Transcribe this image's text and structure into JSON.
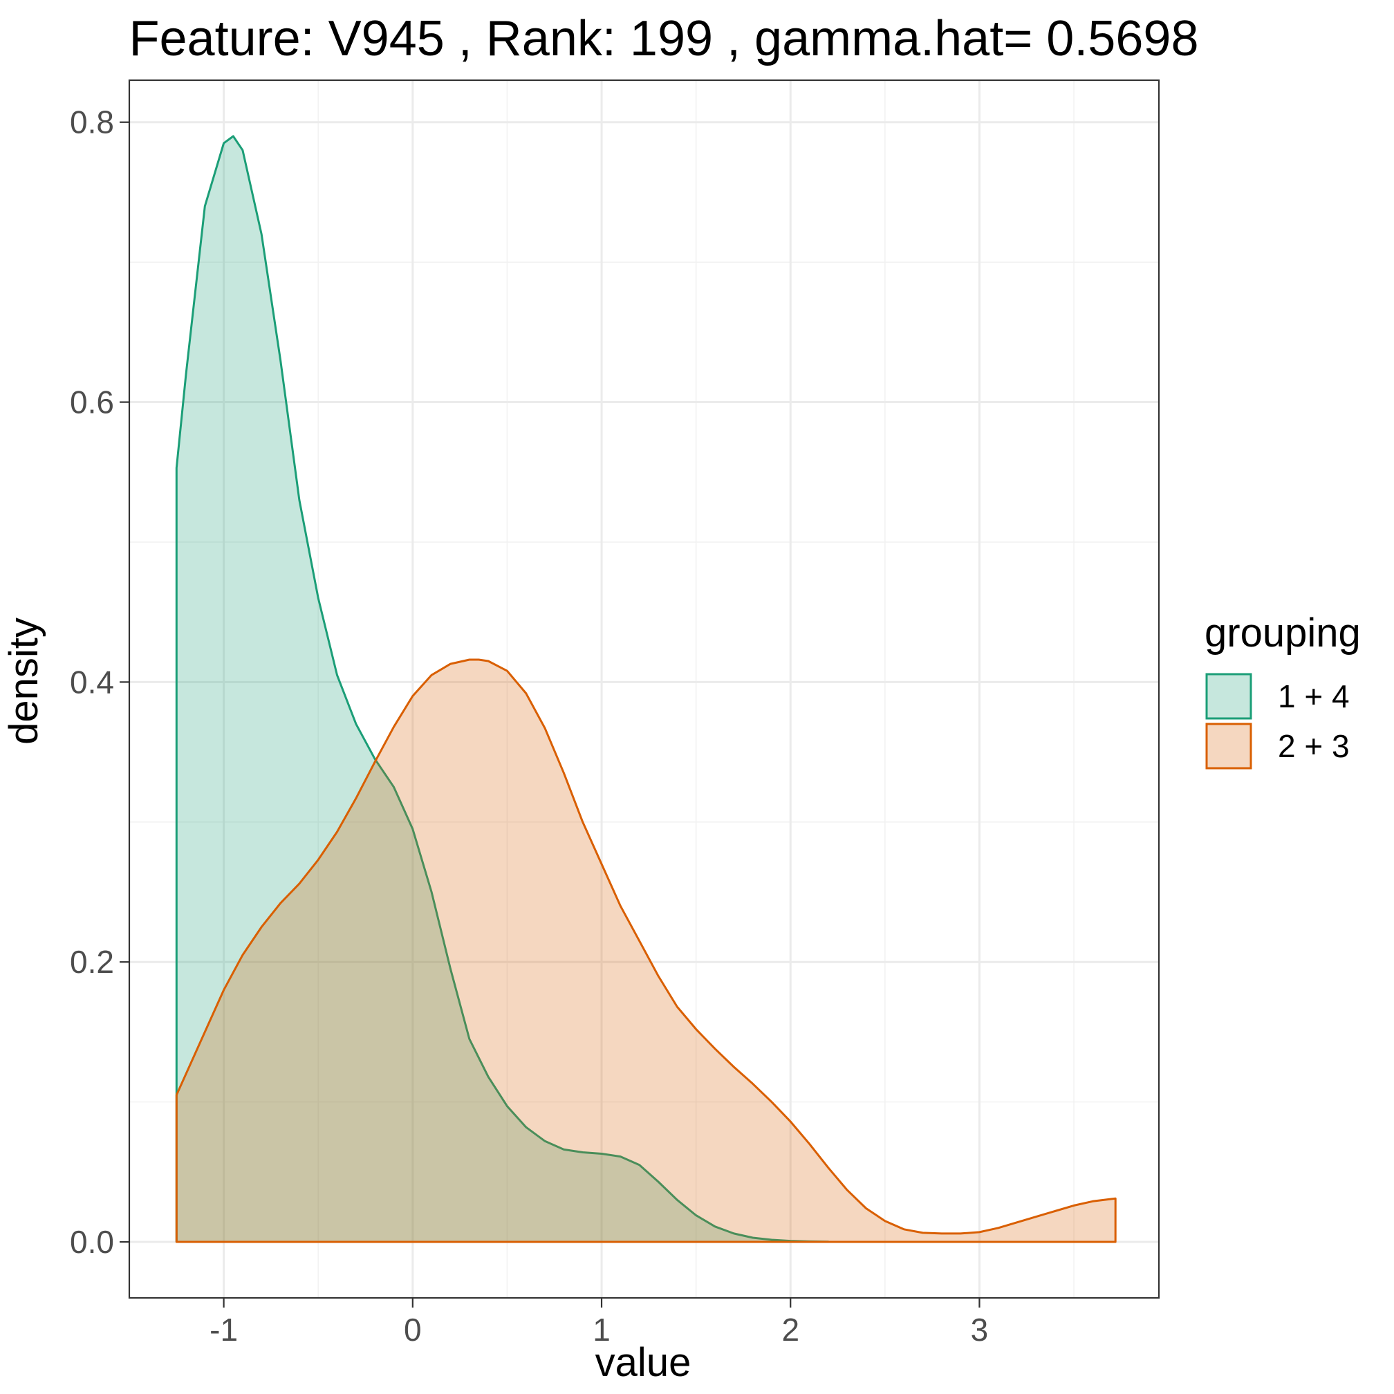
{
  "chart_data": {
    "type": "area",
    "title": "Feature: V945 , Rank: 199 , gamma.hat= 0.5698",
    "xlabel": "value",
    "ylabel": "density",
    "xlim": [
      -1.5,
      3.95
    ],
    "ylim": [
      -0.04,
      0.83
    ],
    "x_ticks": [
      -1,
      0,
      1,
      2,
      3
    ],
    "x_tick_labels": [
      "-1",
      "0",
      "1",
      "2",
      "3"
    ],
    "y_ticks": [
      0.0,
      0.2,
      0.4,
      0.6,
      0.8
    ],
    "y_tick_labels": [
      "0.0",
      "0.2",
      "0.4",
      "0.6",
      "0.8"
    ],
    "grid": true,
    "legend": {
      "title": "grouping",
      "placement": "right"
    },
    "series": [
      {
        "name": "1 + 4",
        "color": "#1b9e77",
        "x": [
          -1.25,
          -1.2,
          -1.1,
          -1.0,
          -0.95,
          -0.9,
          -0.8,
          -0.7,
          -0.6,
          -0.5,
          -0.4,
          -0.3,
          -0.2,
          -0.1,
          0.0,
          0.1,
          0.2,
          0.3,
          0.4,
          0.5,
          0.6,
          0.7,
          0.8,
          0.9,
          1.0,
          1.1,
          1.2,
          1.3,
          1.4,
          1.5,
          1.6,
          1.7,
          1.8,
          1.9,
          2.0,
          2.1,
          2.2
        ],
        "values": [
          0.553,
          0.62,
          0.74,
          0.785,
          0.79,
          0.78,
          0.72,
          0.63,
          0.53,
          0.46,
          0.405,
          0.37,
          0.345,
          0.325,
          0.295,
          0.25,
          0.195,
          0.145,
          0.118,
          0.097,
          0.082,
          0.072,
          0.066,
          0.064,
          0.063,
          0.061,
          0.055,
          0.043,
          0.03,
          0.019,
          0.011,
          0.006,
          0.003,
          0.0015,
          0.0007,
          0.0003,
          0.0001
        ]
      },
      {
        "name": "2 + 3",
        "color": "#d95f02",
        "x": [
          -1.25,
          -1.1,
          -1.0,
          -0.9,
          -0.8,
          -0.7,
          -0.6,
          -0.5,
          -0.4,
          -0.3,
          -0.2,
          -0.1,
          0.0,
          0.1,
          0.2,
          0.3,
          0.35,
          0.4,
          0.5,
          0.6,
          0.7,
          0.8,
          0.9,
          1.0,
          1.1,
          1.2,
          1.3,
          1.4,
          1.5,
          1.6,
          1.7,
          1.8,
          1.9,
          2.0,
          2.1,
          2.2,
          2.3,
          2.4,
          2.5,
          2.6,
          2.7,
          2.8,
          2.9,
          3.0,
          3.1,
          3.2,
          3.3,
          3.4,
          3.5,
          3.6,
          3.72
        ],
        "values": [
          0.105,
          0.15,
          0.18,
          0.205,
          0.225,
          0.242,
          0.256,
          0.273,
          0.293,
          0.317,
          0.343,
          0.368,
          0.39,
          0.405,
          0.413,
          0.416,
          0.416,
          0.415,
          0.408,
          0.392,
          0.367,
          0.335,
          0.3,
          0.27,
          0.24,
          0.215,
          0.19,
          0.168,
          0.152,
          0.138,
          0.125,
          0.113,
          0.1,
          0.086,
          0.07,
          0.053,
          0.037,
          0.024,
          0.015,
          0.009,
          0.0065,
          0.006,
          0.006,
          0.007,
          0.01,
          0.014,
          0.018,
          0.022,
          0.026,
          0.029,
          0.031
        ]
      }
    ]
  }
}
